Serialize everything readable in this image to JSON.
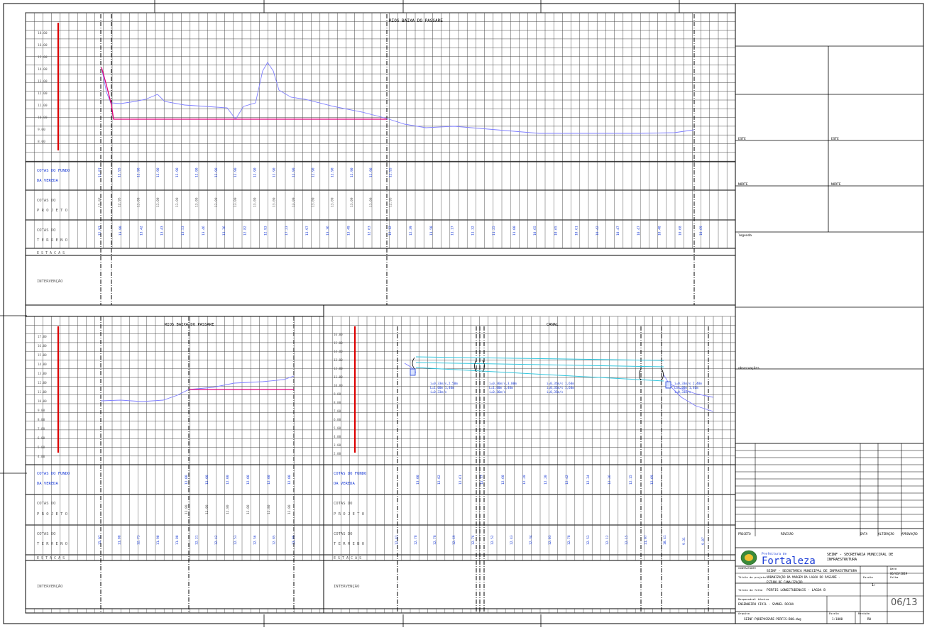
{
  "sheet": {
    "number": "06/13"
  },
  "colors": {
    "grid": "#444444",
    "terrain": "#7f7fff",
    "design": "#e0007a",
    "axis": "#dd0000",
    "blue_text": "#1a3bd6",
    "canal": "#33c6dd"
  },
  "top_profile": {
    "title": "RIOS BAIXA DO PASSARE",
    "y_labels": [
      "18.00",
      "16.00",
      "15.00",
      "14.00",
      "13.00",
      "12.00",
      "11.00",
      "10.00",
      "9.00",
      "8.00"
    ],
    "fundo_label_1": "COTAS DO FUNDO",
    "fundo_label_2": "DA VEREDA",
    "projeto_label_1": "COTAS DO",
    "projeto_label_2": "P R O J E T O",
    "terreno_label_1": "COTAS DO",
    "terreno_label_2": "T E R R E N O",
    "estacas_label": "E S T A C A S",
    "intervencao_label": "INTERVENÇÃO",
    "fundo_values": [
      "15.97",
      "12.95",
      "12.90",
      "12.90",
      "12.90",
      "12.90",
      "12.90",
      "12.90",
      "12.90",
      "12.90",
      "12.90",
      "12.90",
      "12.90",
      "12.90",
      "12.90",
      "12.95"
    ],
    "projeto_values": [
      "15.97",
      "12.95",
      "13.09",
      "13.09",
      "13.09",
      "13.09",
      "13.09",
      "13.09",
      "13.09",
      "13.09",
      "13.09",
      "13.09",
      "13.09",
      "13.09",
      "13.09",
      "12.95"
    ],
    "terreno_values": [
      "15.97",
      "13.80",
      "13.42",
      "13.43",
      "13.53",
      "13.46",
      "13.36",
      "12.82",
      "12.93",
      "17.23",
      "13.97",
      "13.36",
      "13.49",
      "12.63",
      "12.12",
      "12.39",
      "11.50",
      "11.17",
      "11.32",
      "11.25",
      "11.00",
      "10.65",
      "10.65",
      "10.61",
      "10.42",
      "10.47",
      "10.47",
      "10.48",
      "10.68",
      "10.69"
    ]
  },
  "bottom_left_profile": {
    "title": "RIOS BAIXA DO PASSARE",
    "y_labels": [
      "17.00",
      "16.00",
      "15.00",
      "14.00",
      "13.00",
      "12.00",
      "11.00",
      "10.00",
      "9.00",
      "8.00",
      "7.00",
      "6.00",
      "5.00",
      "4.00"
    ],
    "fundo_label_1": "COTAS DO FUNDO",
    "fundo_label_2": "DA VEREDA",
    "projeto_label_1": "COTAS DO",
    "projeto_label_2": "P R O J E T O",
    "terreno_label_1": "COTAS DO",
    "terreno_label_2": "T E R R E N O",
    "estacas_label": "E S T A C A S",
    "intervencao_label": "INTERVENÇÃO",
    "fundo_values": [
      "12.00",
      "12.00",
      "12.00",
      "12.00",
      "12.00",
      "12.00"
    ],
    "projeto_values": [
      "12.80",
      "12.80",
      "12.80",
      "12.80",
      "12.80",
      "12.80"
    ],
    "terreno_values": [
      "15.97",
      "11.08",
      "12.73",
      "11.90",
      "11.80",
      "12.21",
      "12.42",
      "12.53",
      "12.56",
      "12.85",
      "13.06"
    ]
  },
  "bottom_right_profile": {
    "title": "CANAL",
    "y_labels": [
      "16.00",
      "15.00",
      "14.00",
      "13.00",
      "12.00",
      "11.00",
      "10.00",
      "9.00",
      "8.00",
      "7.00",
      "6.00",
      "5.00",
      "4.00",
      "3.00",
      "2.00"
    ],
    "fundo_label_1": "COTAS DO FUNDO",
    "fundo_label_2": "DA VEREDA",
    "projeto_label_1": "COTAS DO",
    "projeto_label_2": "P R O J E T O",
    "terreno_label_1": "COTAS DO",
    "terreno_label_2": "T E R R E N O",
    "estacas_label": "E S T A C A S",
    "intervencao_label": "INTERVENÇÃO",
    "fundo_values": [
      "13.00",
      "12.82",
      "12.61",
      "12.77",
      "12.60",
      "12.28",
      "12.20",
      "12.42",
      "12.34",
      "12.26",
      "12.15",
      "12.09"
    ],
    "terreno_values": [
      "12.41",
      "12.78",
      "12.78",
      "12.69",
      "12.76",
      "12.52",
      "12.43",
      "12.34",
      "12.03",
      "12.78",
      "12.53",
      "12.12",
      "12.15",
      "11.97",
      "10.41",
      "9.31",
      "9.07"
    ],
    "notes": [
      "i=0,33m/s,2,50m",
      "L=1,00m 1,40m",
      "i=0,33m/s",
      "i=0,36m/s,3,00m",
      "L=1,00m 1,40m",
      "i=0,36m/s",
      "i=0,35m/s 1,60m",
      "i=0,35m/s 1,60m",
      "i=0,35m/s",
      "i=0,33m/s 2,40m",
      "L=1,00m 1,40m",
      "i=0,33m/s"
    ]
  },
  "title_block": {
    "label_left_1": "ESTE",
    "label_left_2": "NORTE",
    "label_right_1": "ESTE",
    "label_right_2": "NORTE",
    "legenda": "legenda",
    "observacoes": "observações",
    "row_labels": [
      "PROJETO",
      "REVISÃO",
      "DATA",
      "ALTERAÇÃO",
      "APROVAÇÃO"
    ],
    "logo_small": "Prefeitura de",
    "logo_big": "Fortaleza",
    "org_1": "SEINF - SECRETARIA MUNICIPAL DE",
    "org_2": "INFRAESTRUTURA",
    "contratante_label": "CONTRATANTE",
    "contratante_value": "SEINF - SECRETARIA MUNICIPAL DE INFRAESTRUTURA",
    "data_label": "Data",
    "data_value": "06/03/2019",
    "projeto_label": "Título do projeto",
    "projeto_value_1": "URBANIZAÇÃO DA MARGEM DA LAGOA DO PASSARÉ -",
    "projeto_value_2": "ESTUDO DE CANALIZAÇÃO",
    "escala_label": "Escala",
    "escala_value": "1:",
    "folha_label": "Folha",
    "folha_value": "06/13",
    "desenho_label": "Título da folha",
    "desenho_value": "PERFIS LONGITUDINAIS - LAGOA B",
    "responsavel_label": "Responsável técnico",
    "responsavel_value": "ENGENHEIRO CIVIL - SAMUEL ROCHA",
    "arquivo_label": "Arquivo",
    "arquivo_value": "SEINF-PQDEPASSARE-PERFIS-B00.dwg",
    "escala2_label": "Escala",
    "escala2_value": "1:1000",
    "revisao_label": "Revisão",
    "revisao_value": "R0"
  }
}
